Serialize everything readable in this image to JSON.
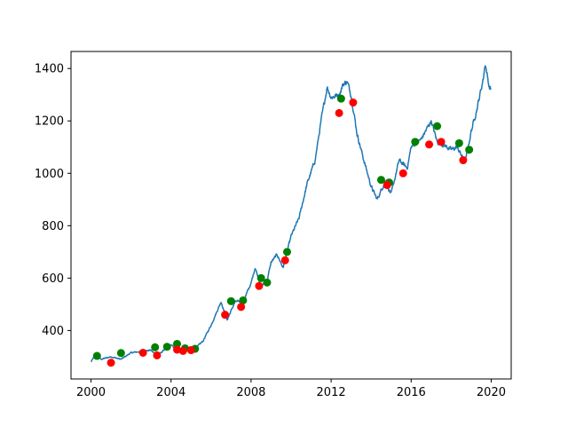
{
  "chart_data": {
    "type": "line",
    "title": "",
    "xlabel": "",
    "ylabel": "",
    "xlim": [
      1999.0,
      2021.0
    ],
    "ylim": [
      215,
      1465
    ],
    "x_ticks": [
      2000,
      2004,
      2008,
      2012,
      2016,
      2020
    ],
    "x_tick_labels": [
      "2000",
      "2004",
      "2008",
      "2012",
      "2016",
      "2020"
    ],
    "y_ticks": [
      400,
      600,
      800,
      1000,
      1200,
      1400
    ],
    "y_tick_labels": [
      "400",
      "600",
      "800",
      "1000",
      "1200",
      "1400"
    ],
    "series": [
      {
        "name": "price",
        "color": "#1f77b4",
        "anchors": [
          [
            2000.0,
            280
          ],
          [
            2000.2,
            305
          ],
          [
            2000.5,
            290
          ],
          [
            2001.0,
            300
          ],
          [
            2001.5,
            290
          ],
          [
            2002.0,
            315
          ],
          [
            2002.5,
            320
          ],
          [
            2003.0,
            325
          ],
          [
            2003.3,
            300
          ],
          [
            2003.7,
            330
          ],
          [
            2004.0,
            345
          ],
          [
            2004.4,
            320
          ],
          [
            2004.8,
            330
          ],
          [
            2005.2,
            330
          ],
          [
            2005.6,
            360
          ],
          [
            2006.0,
            420
          ],
          [
            2006.5,
            510
          ],
          [
            2006.8,
            440
          ],
          [
            2007.2,
            510
          ],
          [
            2007.6,
            510
          ],
          [
            2008.0,
            580
          ],
          [
            2008.2,
            640
          ],
          [
            2008.5,
            570
          ],
          [
            2008.8,
            590
          ],
          [
            2009.0,
            660
          ],
          [
            2009.3,
            690
          ],
          [
            2009.6,
            640
          ],
          [
            2010.0,
            760
          ],
          [
            2010.4,
            830
          ],
          [
            2010.8,
            960
          ],
          [
            2011.2,
            1050
          ],
          [
            2011.5,
            1200
          ],
          [
            2011.8,
            1330
          ],
          [
            2012.0,
            1290
          ],
          [
            2012.4,
            1300
          ],
          [
            2012.6,
            1340
          ],
          [
            2012.8,
            1350
          ],
          [
            2013.0,
            1300
          ],
          [
            2013.3,
            1150
          ],
          [
            2013.6,
            1060
          ],
          [
            2014.0,
            950
          ],
          [
            2014.3,
            900
          ],
          [
            2014.7,
            970
          ],
          [
            2015.0,
            920
          ],
          [
            2015.4,
            1050
          ],
          [
            2015.8,
            1020
          ],
          [
            2016.0,
            1100
          ],
          [
            2016.5,
            1130
          ],
          [
            2017.0,
            1200
          ],
          [
            2017.3,
            1120
          ],
          [
            2017.6,
            1110
          ],
          [
            2018.0,
            1090
          ],
          [
            2018.3,
            1100
          ],
          [
            2018.7,
            1040
          ],
          [
            2019.0,
            1160
          ],
          [
            2019.3,
            1250
          ],
          [
            2019.6,
            1360
          ],
          [
            2019.7,
            1420
          ],
          [
            2019.9,
            1330
          ],
          [
            2020.0,
            1320
          ]
        ]
      }
    ],
    "markers": [
      {
        "name": "green",
        "color": "#008000",
        "points": [
          [
            2000.3,
            303
          ],
          [
            2001.5,
            314
          ],
          [
            2003.2,
            336
          ],
          [
            2003.8,
            338
          ],
          [
            2004.3,
            349
          ],
          [
            2004.7,
            332
          ],
          [
            2005.2,
            330
          ],
          [
            2007.0,
            512
          ],
          [
            2007.6,
            515
          ],
          [
            2008.5,
            600
          ],
          [
            2008.8,
            583
          ],
          [
            2009.8,
            700
          ],
          [
            2012.5,
            1285
          ],
          [
            2014.5,
            975
          ],
          [
            2014.9,
            965
          ],
          [
            2016.2,
            1120
          ],
          [
            2017.3,
            1180
          ],
          [
            2018.4,
            1115
          ],
          [
            2018.9,
            1090
          ]
        ]
      },
      {
        "name": "red",
        "color": "#ff0000",
        "points": [
          [
            2001.0,
            277
          ],
          [
            2002.6,
            315
          ],
          [
            2003.3,
            305
          ],
          [
            2004.3,
            327
          ],
          [
            2004.6,
            322
          ],
          [
            2005.0,
            325
          ],
          [
            2006.7,
            460
          ],
          [
            2007.5,
            490
          ],
          [
            2008.4,
            570
          ],
          [
            2009.7,
            668
          ],
          [
            2012.4,
            1230
          ],
          [
            2013.1,
            1270
          ],
          [
            2014.8,
            955
          ],
          [
            2015.6,
            1000
          ],
          [
            2016.9,
            1110
          ],
          [
            2017.5,
            1120
          ],
          [
            2018.6,
            1050
          ]
        ]
      }
    ]
  }
}
